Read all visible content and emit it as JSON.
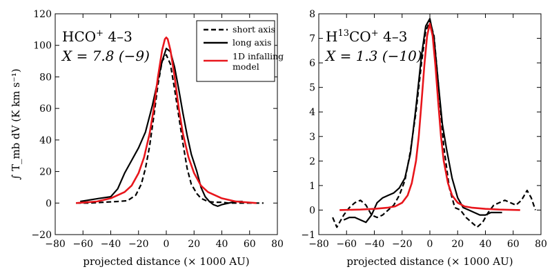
{
  "chart_data": [
    {
      "type": "line",
      "xlabel": "projected distance (× 1000 AU)",
      "ylabel": "∫ T_mb dV (K km s⁻¹)",
      "xlim": [
        -80,
        80
      ],
      "ylim": [
        -20,
        120
      ],
      "xticks": [
        -80,
        -60,
        -40,
        -20,
        0,
        20,
        40,
        60,
        80
      ],
      "yticks": [
        -20,
        0,
        20,
        40,
        60,
        80,
        100,
        120
      ],
      "annotation": {
        "molecule": "HCO",
        "sup": "+",
        "transition": " 4–3",
        "abundance": "X = 7.8 (−9)"
      },
      "legend": {
        "position": "top-right",
        "entries": [
          "short axis",
          "long axis",
          "1D infalling",
          "model"
        ]
      },
      "series": [
        {
          "name": "short axis",
          "style": "dashed",
          "color": "#000000",
          "x": [
            -65,
            -55,
            -45,
            -35,
            -28,
            -22,
            -18,
            -15,
            -12,
            -9,
            -6,
            -3,
            0,
            3,
            6,
            9,
            12,
            15,
            18,
            22,
            25,
            30,
            35,
            40,
            45,
            50,
            55,
            60,
            65,
            70
          ],
          "y": [
            0,
            0,
            0.5,
            1,
            1.5,
            5,
            12,
            22,
            36,
            55,
            75,
            90,
            94,
            88,
            72,
            55,
            38,
            22,
            12,
            6,
            3,
            1,
            0.5,
            0.5,
            0,
            0,
            0,
            0,
            0,
            0
          ]
        },
        {
          "name": "long axis",
          "style": "solid",
          "color": "#000000",
          "x": [
            -62,
            -55,
            -48,
            -40,
            -35,
            -30,
            -25,
            -20,
            -15,
            -10,
            -6,
            -3,
            0,
            3,
            6,
            9,
            12,
            15,
            18,
            22,
            25,
            28,
            31,
            34,
            37,
            40,
            45,
            50,
            55
          ],
          "y": [
            1,
            2,
            3,
            4,
            9,
            19,
            27,
            35,
            45,
            62,
            78,
            90,
            98,
            96,
            86,
            72,
            57,
            43,
            31,
            20,
            10,
            4,
            1,
            -1,
            -2,
            -1,
            0,
            1,
            1
          ]
        },
        {
          "name": "1D infalling model",
          "style": "solid",
          "color": "#e8151b",
          "x": [
            -65,
            -60,
            -50,
            -40,
            -30,
            -25,
            -20,
            -16,
            -12,
            -9,
            -6,
            -3,
            -1,
            0,
            1,
            3,
            6,
            9,
            12,
            16,
            20,
            25,
            30,
            40,
            50,
            60,
            65
          ],
          "y": [
            0,
            0.3,
            1,
            3,
            7,
            11,
            19,
            29,
            44,
            60,
            80,
            97,
            104,
            105,
            104,
            97,
            80,
            60,
            44,
            29,
            19,
            11,
            7,
            3,
            1,
            0.3,
            0
          ]
        }
      ]
    },
    {
      "type": "line",
      "xlabel": "projected distance (× 1000 AU)",
      "ylabel": "",
      "xlim": [
        -80,
        80
      ],
      "ylim": [
        -1,
        8
      ],
      "xticks": [
        -80,
        -60,
        -40,
        -20,
        0,
        20,
        40,
        60,
        80
      ],
      "yticks": [
        -1,
        0,
        1,
        2,
        3,
        4,
        5,
        6,
        7,
        8
      ],
      "annotation": {
        "molecule": "H",
        "sup": "13",
        "molecule2": "CO",
        "sup2": "+",
        "transition": " 4–3",
        "abundance": "X = 1.3 (−10)"
      },
      "series": [
        {
          "name": "short axis",
          "style": "dashed",
          "color": "#000000",
          "x": [
            -70,
            -67,
            -62,
            -58,
            -54,
            -50,
            -46,
            -42,
            -38,
            -34,
            -30,
            -26,
            -22,
            -18,
            -14,
            -10,
            -6,
            -3,
            0,
            3,
            6,
            10,
            14,
            18,
            22,
            26,
            30,
            34,
            38,
            42,
            46,
            50,
            54,
            58,
            62,
            66,
            70,
            73,
            76
          ],
          "y": [
            -0.3,
            -0.7,
            -0.2,
            0.1,
            0.3,
            0.4,
            0.2,
            -0.2,
            -0.3,
            -0.2,
            0.0,
            0.2,
            0.6,
            1.2,
            2.4,
            4.0,
            6.0,
            7.3,
            7.7,
            7.1,
            5.2,
            2.6,
            0.9,
            0.1,
            0.0,
            -0.3,
            -0.5,
            -0.7,
            -0.5,
            -0.1,
            0.2,
            0.3,
            0.4,
            0.3,
            0.2,
            0.4,
            0.8,
            0.5,
            0.0
          ]
        },
        {
          "name": "long axis",
          "style": "solid",
          "color": "#000000",
          "x": [
            -62,
            -58,
            -54,
            -50,
            -46,
            -42,
            -38,
            -34,
            -30,
            -26,
            -22,
            -18,
            -14,
            -10,
            -6,
            -3,
            0,
            3,
            6,
            9,
            12,
            16,
            20,
            24,
            28,
            32,
            36,
            40,
            44,
            48,
            52
          ],
          "y": [
            -0.4,
            -0.3,
            -0.3,
            -0.4,
            -0.5,
            -0.2,
            0.3,
            0.5,
            0.6,
            0.7,
            0.9,
            1.3,
            2.3,
            4.2,
            6.3,
            7.5,
            7.8,
            7.0,
            5.2,
            3.5,
            2.5,
            1.3,
            0.5,
            0.1,
            0.0,
            -0.1,
            -0.2,
            -0.2,
            -0.1,
            -0.1,
            -0.1
          ]
        },
        {
          "name": "1D infalling model",
          "style": "solid",
          "color": "#e8151b",
          "x": [
            -65,
            -50,
            -40,
            -30,
            -25,
            -20,
            -16,
            -13,
            -10,
            -8,
            -6,
            -4,
            -2,
            0,
            2,
            4,
            6,
            8,
            10,
            13,
            16,
            20,
            25,
            30,
            40,
            50,
            65
          ],
          "y": [
            0,
            0.02,
            0.05,
            0.1,
            0.15,
            0.3,
            0.6,
            1.1,
            2.0,
            3.0,
            4.4,
            5.9,
            7.1,
            7.6,
            7.1,
            5.9,
            4.4,
            3.0,
            2.0,
            1.1,
            0.6,
            0.3,
            0.15,
            0.1,
            0.05,
            0.02,
            0
          ]
        }
      ]
    }
  ]
}
